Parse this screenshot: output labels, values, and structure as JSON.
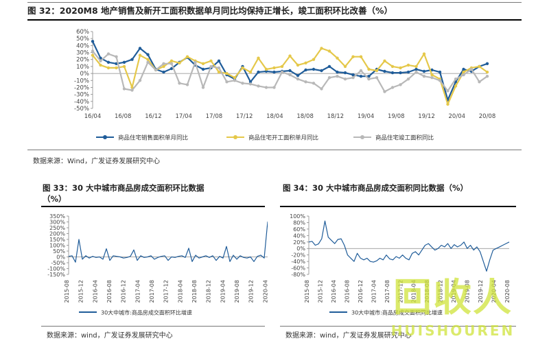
{
  "figure32": {
    "title": "图 32：2020M8 地产销售及新开工面积数据单月同比均保持正增长，竣工面积环比改善（%）",
    "source": "数据来源：Wind，广发证券发展研究中心"
  },
  "figure33": {
    "title_line1": "图 33：30 大中城市商品房成交面积环比数据",
    "title_line2": "（%）",
    "source": "数据来源：wind，广发证券发展研究中心"
  },
  "figure34": {
    "title": "图 34：30 大中城市商品房成交面积同比数据（%）",
    "source": "数据来源：wind，广发证券发展研究中心"
  },
  "watermark": {
    "top": "回收人",
    "bottom": "HUISHOUREN"
  },
  "chart_data": [
    {
      "type": "line",
      "title": "",
      "x_ticks": [
        "16/04",
        "16/08",
        "16/12",
        "17/04",
        "17/08",
        "17/12",
        "18/04",
        "18/08",
        "18/12",
        "19/04",
        "19/08",
        "19/12",
        "20/04",
        "20/08"
      ],
      "y_ticks": [
        "60%",
        "50%",
        "40%",
        "30%",
        "20%",
        "10%",
        "0%",
        "-10%",
        "-20%",
        "-30%",
        "-40%",
        "-50%"
      ],
      "ylim": [
        -50,
        60
      ],
      "legend_position": "bottom",
      "series": [
        {
          "name": "商品住宅销售面积单月同比",
          "color": "#1f5c99",
          "values": [
            46,
            22,
            16,
            14,
            16,
            20,
            36,
            27,
            6,
            2,
            7,
            16,
            23,
            12,
            6,
            8,
            18,
            -2,
            -8,
            10,
            -12,
            2,
            3,
            2,
            3,
            4,
            -3,
            5,
            6,
            4,
            10,
            2,
            1,
            -2,
            -4,
            -4,
            6,
            3,
            1,
            1,
            2,
            6,
            3,
            5,
            2,
            -38,
            -12,
            6,
            3,
            10,
            14
          ]
        },
        {
          "name": "商品住宅开工面积单月同比",
          "color": "#e5c84a",
          "values": [
            26,
            12,
            8,
            8,
            10,
            -20,
            26,
            20,
            5,
            10,
            18,
            15,
            24,
            18,
            14,
            18,
            2,
            0,
            -6,
            8,
            2,
            22,
            6,
            8,
            10,
            25,
            12,
            15,
            20,
            36,
            32,
            22,
            10,
            24,
            24,
            6,
            4,
            18,
            10,
            8,
            12,
            10,
            28,
            -2,
            -8,
            -44,
            -18,
            2,
            8,
            10,
            2
          ]
        },
        {
          "name": "商品住宅竣工面积同比",
          "color": "#b8b8b8",
          "values": [
            32,
            18,
            28,
            24,
            -22,
            -24,
            -10,
            16,
            5,
            14,
            14,
            -14,
            -16,
            16,
            -20,
            10,
            8,
            -12,
            -10,
            -14,
            -15,
            -18,
            -20,
            -20,
            2,
            -2,
            -8,
            -12,
            -14,
            -22,
            -6,
            -4,
            -8,
            -6,
            4,
            -8,
            -6,
            -26,
            -20,
            -16,
            -8,
            2,
            -4,
            -6,
            -10,
            -25,
            -8,
            -2,
            6,
            -12,
            -4
          ]
        }
      ]
    },
    {
      "type": "line",
      "title": "",
      "x_ticks": [
        "2015-08",
        "2015-12",
        "2016-04",
        "2016-08",
        "2016-12",
        "2017-04",
        "2017-08",
        "2017-12",
        "2018-04",
        "2018-08",
        "2018-12",
        "2019-04",
        "2019-08",
        "2019-12",
        "2020-04",
        "2020-08"
      ],
      "y_ticks": [
        "350%",
        "300%",
        "250%",
        "200%",
        "150%",
        "100%",
        "50%",
        "0%",
        "-50%",
        "-100%",
        "-150%"
      ],
      "ylim": [
        -150,
        350
      ],
      "legend_position": "bottom",
      "series": [
        {
          "name": "30大中城市:商品房成交面积环比增速",
          "color": "#1f5c99",
          "values": [
            5,
            10,
            -45,
            150,
            -20,
            10,
            -10,
            5,
            -5,
            0,
            -20,
            70,
            -30,
            10,
            5,
            0,
            -10,
            -5,
            5,
            60,
            -30,
            10,
            -5,
            0,
            10,
            -20,
            -5,
            5,
            10,
            -30,
            0,
            -5,
            5,
            10,
            -5,
            75,
            -40,
            15,
            -10,
            0,
            10,
            -5,
            10,
            -30,
            5,
            -10,
            90,
            -40,
            15,
            -20,
            10,
            -5,
            -10,
            0,
            -40,
            5,
            15,
            -10,
            300,
            -80,
            20,
            10,
            -5
          ]
        }
      ]
    },
    {
      "type": "line",
      "title": "",
      "x_ticks": [
        "2015-08",
        "2015-12",
        "2016-04",
        "2016-08",
        "2016-12",
        "2017-04",
        "2017-08",
        "2017-12",
        "2018-04",
        "2018-08",
        "2018-12",
        "2019-04",
        "2019-08",
        "2019-12",
        "2020-04",
        "2020-08"
      ],
      "y_ticks": [
        "100%",
        "80%",
        "60%",
        "40%",
        "20%",
        "0%",
        "-20%",
        "-40%",
        "-60%",
        "-80%"
      ],
      "ylim": [
        -80,
        100
      ],
      "legend_position": "bottom",
      "series": [
        {
          "name": "30大中城市:商品房成交面积同比增速",
          "color": "#1f5c99",
          "values": [
            20,
            22,
            10,
            14,
            30,
            85,
            35,
            25,
            15,
            28,
            30,
            10,
            -20,
            -30,
            -40,
            -15,
            -30,
            -35,
            -30,
            -40,
            -42,
            -38,
            -30,
            -35,
            -20,
            -32,
            -35,
            -25,
            -30,
            -20,
            -30,
            -35,
            -15,
            -10,
            -20,
            -5,
            10,
            15,
            5,
            -5,
            0,
            10,
            5,
            15,
            0,
            12,
            5,
            10,
            20,
            0,
            10,
            -5,
            5,
            -10,
            -40,
            -70,
            -35,
            -5,
            0,
            5,
            10,
            15,
            20
          ]
        }
      ]
    }
  ]
}
